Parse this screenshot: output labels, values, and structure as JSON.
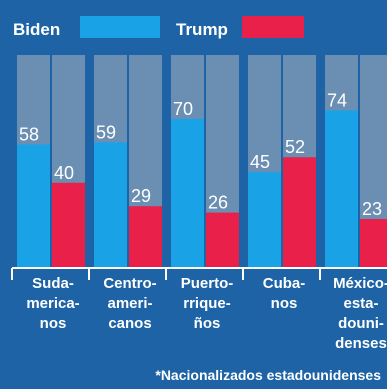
{
  "chart_data": {
    "type": "bar",
    "legend": [
      "Biden",
      "Trump"
    ],
    "categories": [
      [
        "Suda-",
        "merica-",
        "nos"
      ],
      [
        "Centro-",
        "ameri-",
        "canos"
      ],
      [
        "Puerto-",
        "rrique-",
        "ños"
      ],
      [
        "Cuba-",
        "nos"
      ],
      [
        "México-",
        "esta-",
        "douni-",
        "denses"
      ]
    ],
    "series": [
      {
        "name": "Biden",
        "values": [
          58,
          59,
          70,
          45,
          74
        ]
      },
      {
        "name": "Trump",
        "values": [
          40,
          29,
          26,
          52,
          23
        ]
      }
    ],
    "ylim": [
      0,
      100
    ],
    "grid": false,
    "legend_position": "top-left",
    "footnote": "*Nacionalizados estadounidenses",
    "colors": {
      "background": "#1d63a6",
      "biden": "#19a3e6",
      "trump": "#e8204a",
      "track": "#6b8fb3",
      "text": "#ffffff"
    }
  }
}
